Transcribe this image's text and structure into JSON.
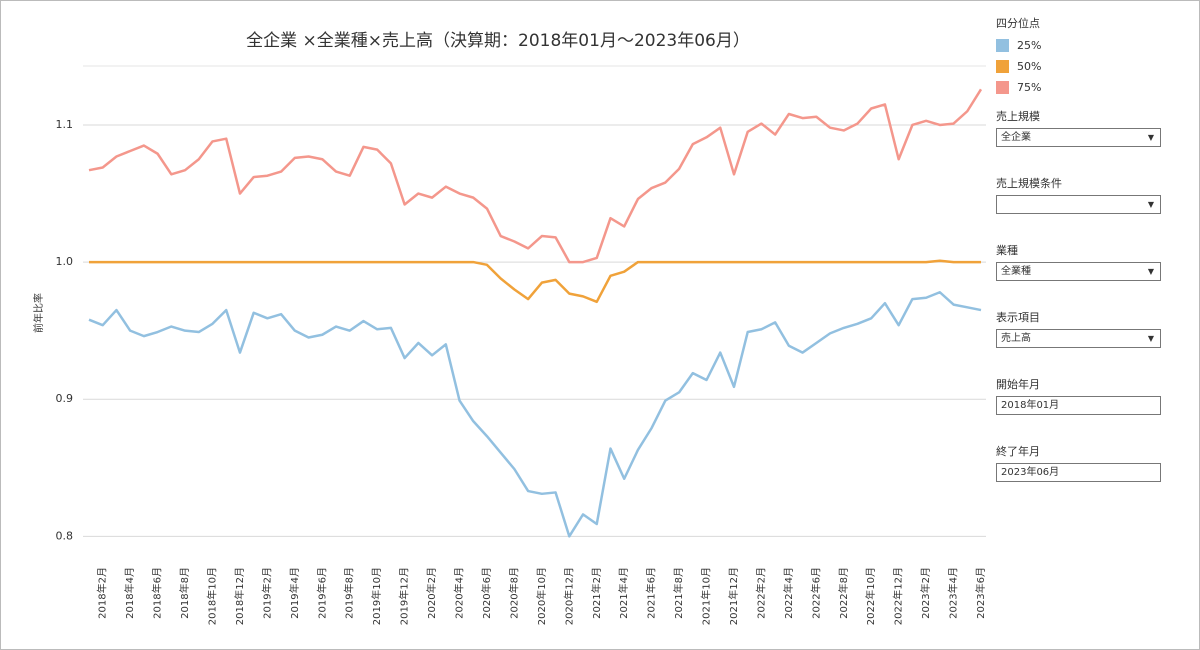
{
  "chart_data": {
    "type": "line",
    "title": "全企業 ×全業種×売上高（決算期：2018年01月～2023年06月）",
    "y_label": "前年比率",
    "legend_title": "四分位点",
    "categories": [
      null,
      "2018年2月",
      null,
      "2018年4月",
      null,
      "2018年6月",
      null,
      "2018年8月",
      null,
      "2018年10月",
      null,
      "2018年12月",
      null,
      "2019年2月",
      null,
      "2019年4月",
      null,
      "2019年6月",
      null,
      "2019年8月",
      null,
      "2019年10月",
      null,
      "2019年12月",
      null,
      "2020年2月",
      null,
      "2020年4月",
      null,
      "2020年6月",
      null,
      "2020年8月",
      null,
      "2020年10月",
      null,
      "2020年12月",
      null,
      "2021年2月",
      null,
      "2021年4月",
      null,
      "2021年6月",
      null,
      "2021年8月",
      null,
      "2021年10月",
      null,
      "2021年12月",
      null,
      "2022年2月",
      null,
      "2022年4月",
      null,
      "2022年6月",
      null,
      "2022年8月",
      null,
      "2022年10月",
      null,
      "2022年12月",
      null,
      "2023年2月",
      null,
      "2023年4月",
      null,
      "2023年6月"
    ],
    "series": [
      {
        "name": "25%",
        "color": "#92c0e0",
        "values": [
          0.958,
          0.954,
          0.965,
          0.95,
          0.946,
          0.949,
          0.953,
          0.95,
          0.949,
          0.955,
          0.965,
          0.934,
          0.963,
          0.959,
          0.962,
          0.95,
          0.945,
          0.947,
          0.953,
          0.95,
          0.957,
          0.951,
          0.952,
          0.93,
          0.941,
          0.932,
          0.94,
          0.899,
          0.884,
          0.873,
          0.861,
          0.849,
          0.833,
          0.831,
          0.832,
          0.8,
          0.816,
          0.809,
          0.864,
          0.842,
          0.863,
          0.879,
          0.899,
          0.905,
          0.919,
          0.914,
          0.934,
          0.909,
          0.949,
          0.951,
          0.956,
          0.939,
          0.934,
          0.941,
          0.948,
          0.952,
          0.955,
          0.959,
          0.97,
          0.954,
          0.973,
          0.974,
          0.978,
          0.969,
          0.967,
          0.965
        ]
      },
      {
        "name": "50%",
        "color": "#f0a23a",
        "values": [
          1,
          1,
          1,
          1,
          1,
          1,
          1,
          1,
          1,
          1,
          1,
          1,
          1,
          1,
          1,
          1,
          1,
          1,
          1,
          1,
          1,
          1,
          1,
          1,
          1,
          1,
          1,
          1,
          1,
          0.998,
          0.988,
          0.98,
          0.973,
          0.985,
          0.987,
          0.977,
          0.975,
          0.971,
          0.99,
          0.993,
          1,
          1,
          1,
          1,
          1,
          1,
          1,
          1,
          1,
          1,
          1,
          1,
          1,
          1,
          1,
          1,
          1,
          1,
          1,
          1,
          1,
          1,
          1.001,
          1,
          1,
          1
        ]
      },
      {
        "name": "75%",
        "color": "#f4978c",
        "values": [
          1.067,
          1.069,
          1.077,
          1.081,
          1.085,
          1.079,
          1.064,
          1.067,
          1.075,
          1.088,
          1.09,
          1.05,
          1.062,
          1.063,
          1.066,
          1.076,
          1.077,
          1.075,
          1.066,
          1.063,
          1.084,
          1.082,
          1.072,
          1.042,
          1.05,
          1.047,
          1.055,
          1.05,
          1.047,
          1.039,
          1.019,
          1.015,
          1.01,
          1.019,
          1.018,
          1,
          1,
          1.003,
          1.032,
          1.026,
          1.046,
          1.054,
          1.058,
          1.068,
          1.086,
          1.091,
          1.098,
          1.064,
          1.095,
          1.101,
          1.093,
          1.108,
          1.105,
          1.106,
          1.098,
          1.096,
          1.101,
          1.112,
          1.115,
          1.075,
          1.1,
          1.103,
          1.1,
          1.101,
          1.11,
          1.126
        ]
      }
    ],
    "ylim": [
      0.782,
      1.143
    ],
    "yticks": [
      0.8,
      0.9,
      {
        "value": 1,
        "label": "1.0"
      },
      1.1
    ],
    "grid": true
  },
  "filters": [
    {
      "label": "売上規模",
      "value": "全企業",
      "type": "select"
    },
    {
      "label": "売上規模条件",
      "type": "select"
    },
    {
      "label": "業種",
      "value": "全業種",
      "type": "select"
    },
    {
      "label": "表示項目",
      "value": "売上高",
      "type": "select"
    },
    {
      "label": "開始年月",
      "value": "2018年01月",
      "type": "text"
    },
    {
      "label": "終了年月",
      "value": "2023年06月",
      "type": "text"
    }
  ]
}
